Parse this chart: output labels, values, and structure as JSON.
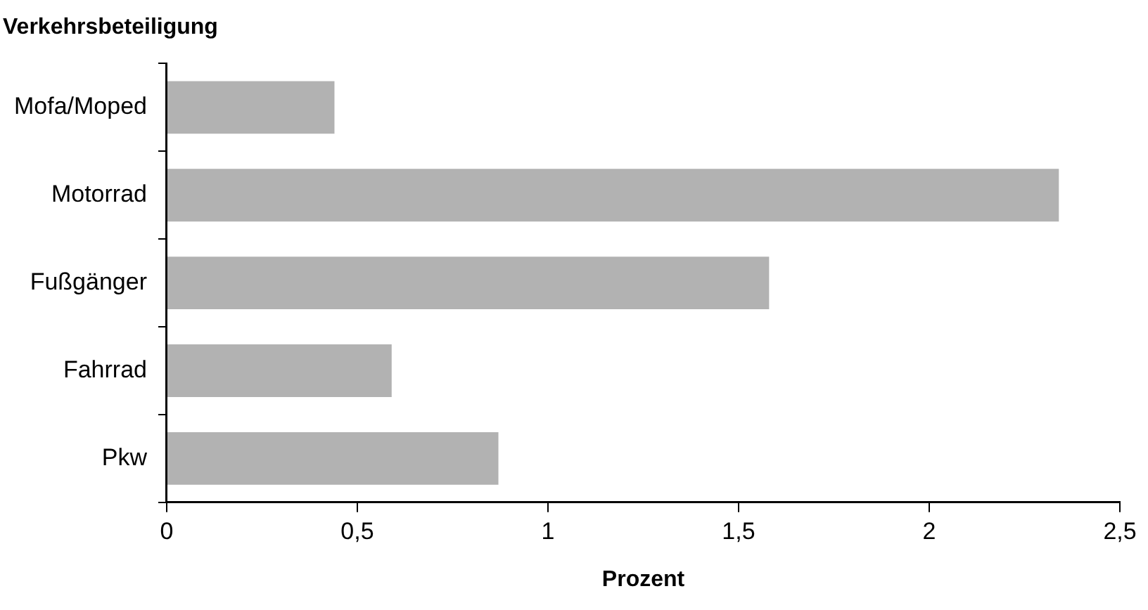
{
  "chart_data": {
    "type": "bar",
    "orientation": "horizontal",
    "title": "Verkehrsbeteiligung",
    "xlabel": "Prozent",
    "categories": [
      "Mofa/Moped",
      "Motorrad",
      "Fußgänger",
      "Fahrrad",
      "Pkw"
    ],
    "values": [
      0.44,
      2.34,
      1.58,
      0.59,
      0.87
    ],
    "color": "#b2b2b2",
    "xlim": [
      0,
      2.5
    ],
    "xticks": [
      {
        "value": 0,
        "label": "0"
      },
      {
        "value": 0.5,
        "label": "0,5"
      },
      {
        "value": 1,
        "label": "1"
      },
      {
        "value": 1.5,
        "label": "1,5"
      },
      {
        "value": 2,
        "label": "2"
      },
      {
        "value": 2.5,
        "label": "2,5"
      }
    ],
    "grid": false,
    "legend": false
  }
}
